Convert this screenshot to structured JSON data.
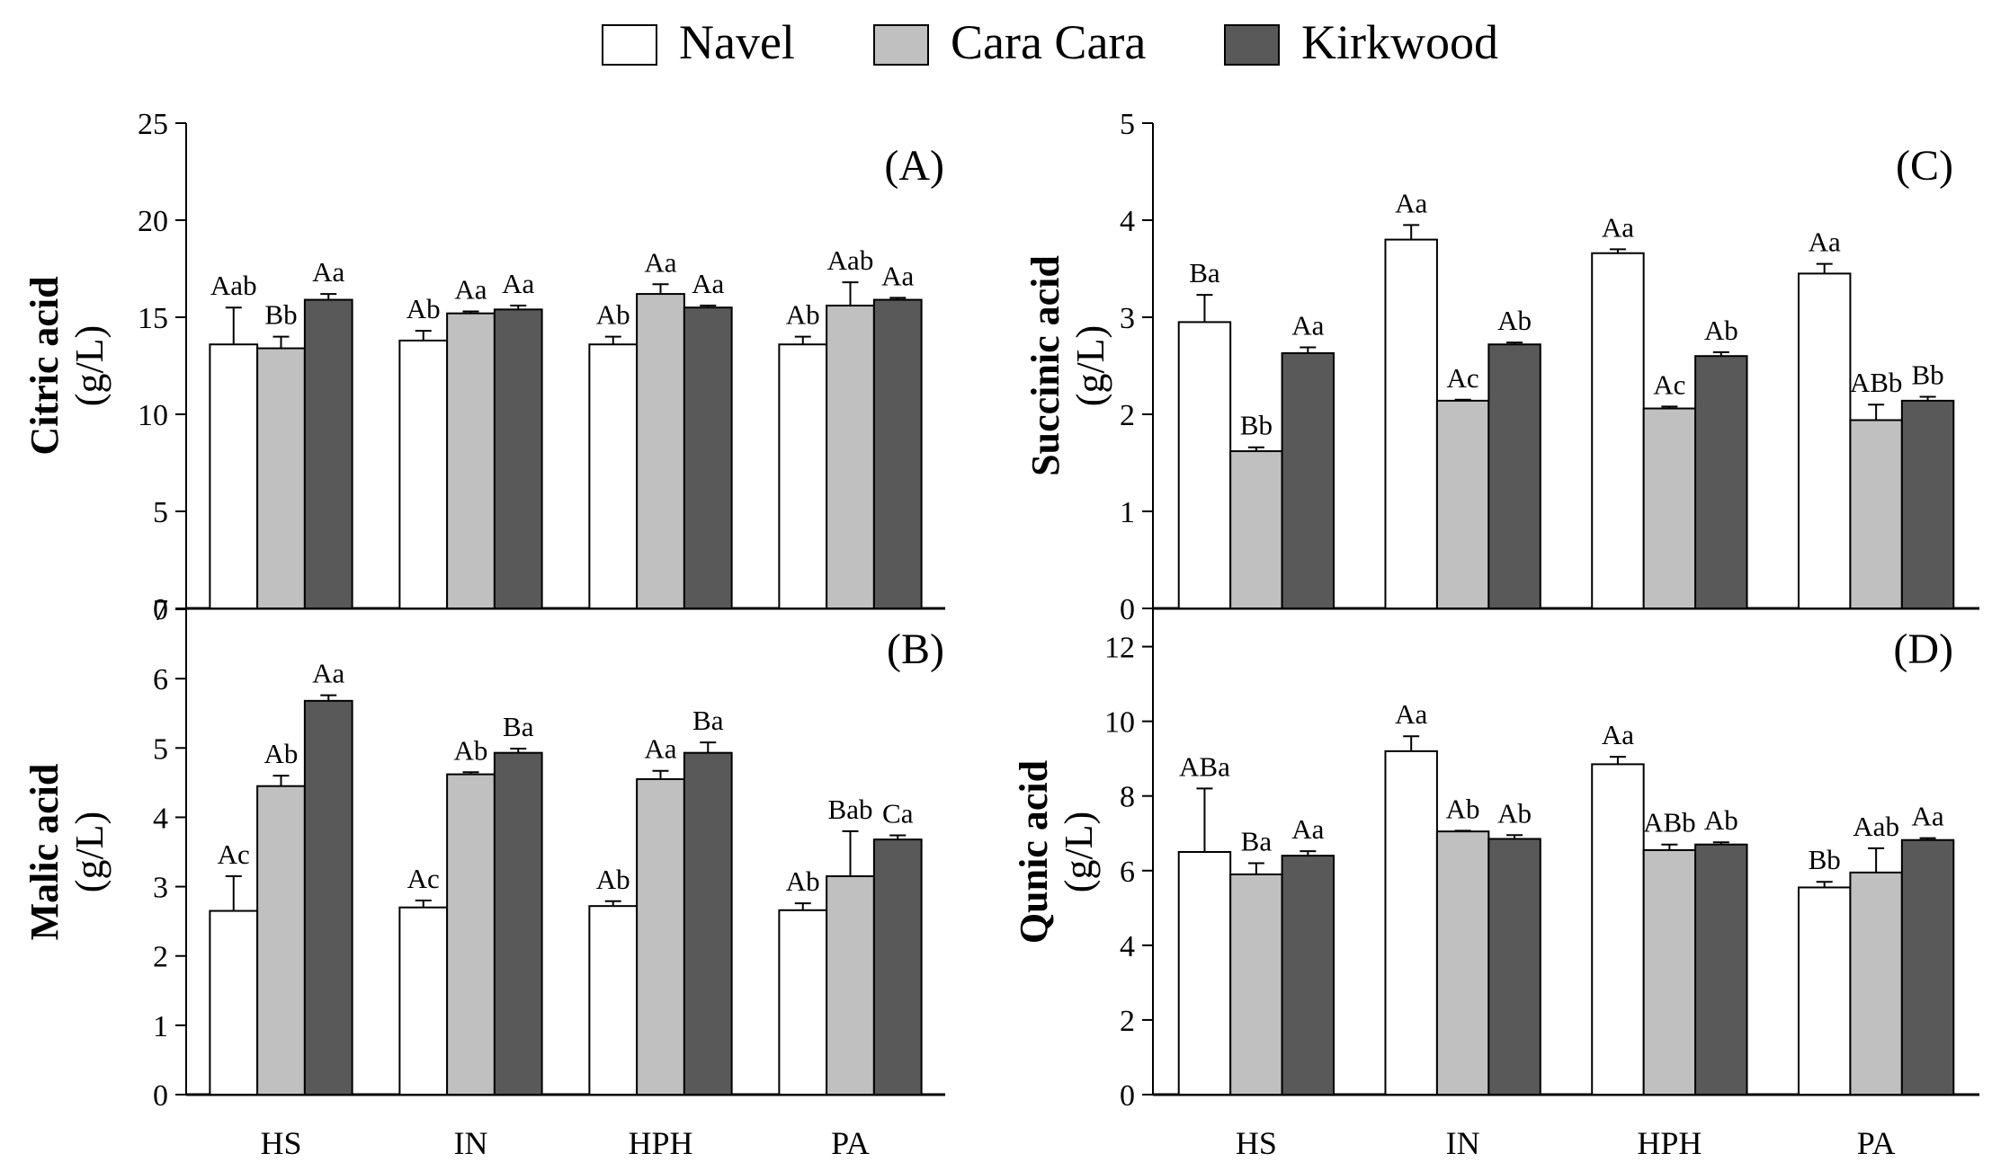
{
  "legend": {
    "items": [
      {
        "label": "Navel",
        "color": "#ffffff"
      },
      {
        "label": "Cara Cara",
        "color": "#c0c0c0"
      },
      {
        "label": "Kirkwood",
        "color": "#595959"
      }
    ]
  },
  "categories": [
    "HS",
    "IN",
    "HPH",
    "PA"
  ],
  "colors": {
    "navel": "#ffffff",
    "cara_cara": "#c0c0c0",
    "kirkwood": "#595959",
    "stroke": "#000000"
  },
  "chart_data": [
    {
      "type": "bar",
      "panel": "(A)",
      "ylabel": "Citric acid",
      "yunit": "(g/L)",
      "categories": [
        "HS",
        "IN",
        "HPH",
        "PA"
      ],
      "ylim": [
        0,
        25
      ],
      "yticks": [
        0,
        5,
        10,
        15,
        20,
        25
      ],
      "series": [
        {
          "name": "Navel",
          "values": [
            13.6,
            13.8,
            13.6,
            13.6
          ],
          "errors": [
            1.9,
            0.5,
            0.4,
            0.4
          ],
          "letters": [
            "Aab",
            "Ab",
            "Ab",
            "Ab"
          ]
        },
        {
          "name": "Cara Cara",
          "values": [
            13.4,
            15.2,
            16.2,
            15.6
          ],
          "errors": [
            0.6,
            0.1,
            0.5,
            1.2
          ],
          "letters": [
            "Bb",
            "Aa",
            "Aa",
            "Aab"
          ]
        },
        {
          "name": "Kirkwood",
          "values": [
            15.9,
            15.4,
            15.5,
            15.9
          ],
          "errors": [
            0.3,
            0.2,
            0.1,
            0.1
          ],
          "letters": [
            "Aa",
            "Aa",
            "Aa",
            "Aa"
          ]
        }
      ]
    },
    {
      "type": "bar",
      "panel": "(B)",
      "ylabel": "Malic acid",
      "yunit": "(g/L)",
      "categories": [
        "HS",
        "IN",
        "HPH",
        "PA"
      ],
      "ylim": [
        0,
        7
      ],
      "yticks": [
        0,
        1,
        2,
        3,
        4,
        5,
        6,
        7
      ],
      "series": [
        {
          "name": "Navel",
          "values": [
            2.65,
            2.7,
            2.72,
            2.66
          ],
          "errors": [
            0.5,
            0.1,
            0.07,
            0.1
          ],
          "letters": [
            "Ac",
            "Ac",
            "Ab",
            "Ab"
          ]
        },
        {
          "name": "Cara Cara",
          "values": [
            4.45,
            4.62,
            4.55,
            3.15
          ],
          "errors": [
            0.15,
            0.03,
            0.12,
            0.65
          ],
          "letters": [
            "Ab",
            "Ab",
            "Aa",
            "Bab"
          ]
        },
        {
          "name": "Kirkwood",
          "values": [
            5.68,
            4.93,
            4.93,
            3.68
          ],
          "errors": [
            0.08,
            0.06,
            0.15,
            0.06
          ],
          "letters": [
            "Aa",
            "Ba",
            "Ba",
            "Ca"
          ]
        }
      ]
    },
    {
      "type": "bar",
      "panel": "(C)",
      "ylabel": "Succinic acid",
      "yunit": "(g/L)",
      "categories": [
        "HS",
        "IN",
        "HPH",
        "PA"
      ],
      "ylim": [
        0,
        5
      ],
      "yticks": [
        0,
        1,
        2,
        3,
        4,
        5
      ],
      "series": [
        {
          "name": "Navel",
          "values": [
            2.95,
            3.8,
            3.66,
            3.45
          ],
          "errors": [
            0.28,
            0.15,
            0.04,
            0.1
          ],
          "letters": [
            "Ba",
            "Aa",
            "Aa",
            "Aa"
          ]
        },
        {
          "name": "Cara Cara",
          "values": [
            1.62,
            2.14,
            2.06,
            1.94
          ],
          "errors": [
            0.04,
            0.01,
            0.02,
            0.16
          ],
          "letters": [
            "Bb",
            "Ac",
            "Ac",
            "ABb"
          ]
        },
        {
          "name": "Kirkwood",
          "values": [
            2.63,
            2.72,
            2.6,
            2.14
          ],
          "errors": [
            0.06,
            0.02,
            0.04,
            0.04
          ],
          "letters": [
            "Aa",
            "Ab",
            "Ab",
            "Bb"
          ]
        }
      ]
    },
    {
      "type": "bar",
      "panel": "(D)",
      "ylabel": "Qunic acid",
      "yunit": "(g/L)",
      "categories": [
        "HS",
        "IN",
        "HPH",
        "PA"
      ],
      "ylim": [
        0,
        13
      ],
      "yticks": [
        0,
        2,
        4,
        6,
        8,
        10,
        12
      ],
      "series": [
        {
          "name": "Navel",
          "values": [
            6.5,
            9.2,
            8.85,
            5.55
          ],
          "errors": [
            1.7,
            0.4,
            0.2,
            0.15
          ],
          "letters": [
            "ABa",
            "Aa",
            "Aa",
            "Bb"
          ]
        },
        {
          "name": "Cara Cara",
          "values": [
            5.9,
            7.05,
            6.55,
            5.95
          ],
          "errors": [
            0.3,
            0.02,
            0.15,
            0.65
          ],
          "letters": [
            "Ba",
            "Ab",
            "ABb",
            "Aab"
          ]
        },
        {
          "name": "Kirkwood",
          "values": [
            6.4,
            6.85,
            6.7,
            6.82
          ],
          "errors": [
            0.12,
            0.1,
            0.06,
            0.05
          ],
          "letters": [
            "Aa",
            "Ab",
            "Ab",
            "Aa"
          ]
        }
      ]
    }
  ]
}
